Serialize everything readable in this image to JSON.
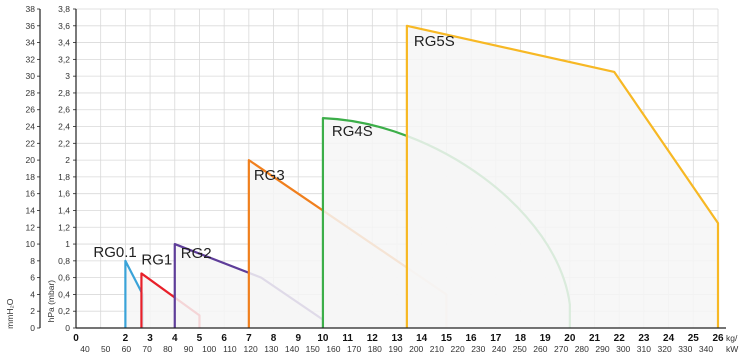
{
  "chart_data": {
    "type": "area",
    "x_primary": {
      "ticks": [
        0,
        2,
        3,
        4,
        5,
        6,
        7,
        8,
        9,
        10,
        11,
        12,
        13,
        14,
        15,
        16,
        17,
        18,
        19,
        20,
        21,
        22,
        23,
        24,
        25,
        26
      ],
      "unit": "kg/",
      "unit2": "kW",
      "range": [
        0,
        26
      ]
    },
    "x_secondary": {
      "ticks": [
        "40",
        "50",
        "60",
        "70",
        "80",
        "90",
        "100",
        "110",
        "120",
        "130",
        "140",
        "150",
        "160",
        "170",
        "180",
        "190",
        "200",
        "210",
        "220",
        "230",
        "240",
        "250",
        "260",
        "270",
        "280",
        "290",
        "300",
        "310",
        "320",
        "330",
        "340"
      ]
    },
    "y_primary": {
      "label": "hPa (mbar)",
      "ticks": [
        "0",
        "0,2",
        "0,4",
        "0,6",
        "0,8",
        "1",
        "1,2",
        "1,4",
        "1,6",
        "1,8",
        "2",
        "2,2",
        "2,4",
        "2,6",
        "2,8",
        "3",
        "3,2",
        "3,4",
        "3,6",
        "3,8"
      ],
      "range": [
        0,
        3.8
      ]
    },
    "y_secondary": {
      "label": "mmH₂O",
      "ticks": [
        "0",
        "2",
        "4",
        "6",
        "8",
        "10",
        "12",
        "14",
        "16",
        "18",
        "20",
        "22",
        "24",
        "26",
        "28",
        "30",
        "32",
        "34",
        "36",
        "38"
      ]
    },
    "grid": true,
    "series": [
      {
        "name": "RG0.1",
        "color": "#3aa3d8",
        "points": [
          [
            2,
            0
          ],
          [
            2,
            0.8
          ],
          [
            2.7,
            0.4
          ],
          [
            2.7,
            0
          ]
        ]
      },
      {
        "name": "RG1",
        "color": "#e8202a",
        "points": [
          [
            2.65,
            0
          ],
          [
            2.65,
            0.65
          ],
          [
            5,
            0.15
          ],
          [
            5,
            0
          ]
        ]
      },
      {
        "name": "RG2",
        "color": "#5e3d99",
        "points": [
          [
            4,
            0
          ],
          [
            4,
            1
          ],
          [
            7.5,
            0.6
          ],
          [
            10,
            0.1
          ],
          [
            10,
            0
          ]
        ]
      },
      {
        "name": "RG3",
        "color": "#f07f1d",
        "points": [
          [
            7,
            0
          ],
          [
            7,
            2
          ],
          [
            15,
            0.4
          ],
          [
            15,
            0
          ]
        ]
      },
      {
        "name": "RG4S",
        "color": "#3cae49",
        "points": [
          [
            10,
            0
          ],
          [
            10,
            2.5
          ],
          [
            20,
            0.28
          ],
          [
            20,
            0
          ]
        ]
      },
      {
        "name": "RG5S",
        "color": "#f7b824",
        "points": [
          [
            13.4,
            0
          ],
          [
            13.4,
            3.6
          ],
          [
            21.8,
            3.05
          ],
          [
            26,
            1.25
          ],
          [
            26,
            0
          ]
        ]
      }
    ]
  }
}
